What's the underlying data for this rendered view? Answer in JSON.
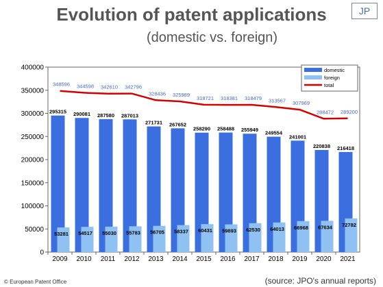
{
  "badge": "JP",
  "footer_left": "© European Patent Office",
  "footer_right": "(source: JPO's annual reports)",
  "colors": {
    "domestic": "#3b6fe0",
    "foreign": "#8fc2f2",
    "total": "#d40000",
    "total_labels": "#4466cc"
  },
  "chart_data": {
    "type": "bar",
    "title": "Evolution of patent applications",
    "subtitle": "(domestic vs. foreign)",
    "categories": [
      "2009",
      "2010",
      "2011",
      "2012",
      "2013",
      "2014",
      "2015",
      "2016",
      "2017",
      "2018",
      "2019",
      "2020",
      "2021"
    ],
    "series": [
      {
        "name": "domestic",
        "type": "bar",
        "values": [
          295315,
          290081,
          287580,
          287013,
          271731,
          267652,
          258290,
          258488,
          255949,
          249554,
          241001,
          220838,
          216418
        ]
      },
      {
        "name": "foreign",
        "type": "bar",
        "values": [
          53281,
          54517,
          55030,
          55783,
          56705,
          58337,
          60431,
          59893,
          62530,
          64013,
          66968,
          67634,
          72782
        ]
      },
      {
        "name": "total",
        "type": "line",
        "values": [
          348596,
          344598,
          342610,
          342796,
          328436,
          325989,
          318721,
          318381,
          318479,
          313567,
          307969,
          288472,
          289200
        ]
      }
    ],
    "yticks": [
      0,
      50000,
      100000,
      150000,
      200000,
      250000,
      300000,
      350000,
      400000
    ],
    "ylim": [
      0,
      400000
    ],
    "legend_position": "top-right",
    "grid": false
  }
}
